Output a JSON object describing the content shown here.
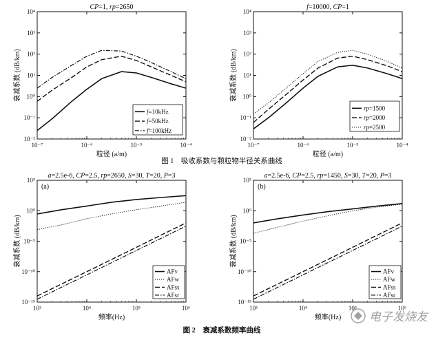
{
  "captions": {
    "fig1": "图 1　吸收系数与颗粒物半径关系曲线",
    "fig2": "图 2　衰减系数频率曲线",
    "watermark": "电子发烧友"
  },
  "chart_data": [
    {
      "type": "line",
      "title": "CP=1, rp=2650",
      "xlabel": "粒径 (a/m)",
      "ylabel": "衰减系数 (dB/km)",
      "xscale": "log",
      "yscale": "log",
      "xlim": [
        1e-07,
        0.0001
      ],
      "ylim": [
        0.01,
        10000
      ],
      "xticks": [
        "10⁻⁷",
        "10⁻⁶",
        "10⁻⁵",
        "10⁻⁴"
      ],
      "yticks": [
        "10⁻²",
        "10⁻¹",
        "10⁰",
        "10¹",
        "10²",
        "10³",
        "10⁴"
      ],
      "x": [
        1e-07,
        2e-07,
        5e-07,
        1e-06,
        2e-06,
        5e-06,
        1e-05,
        2e-05,
        5e-05,
        0.0001
      ],
      "series": [
        {
          "name": "f=10kHz",
          "style": "solid",
          "values": [
            0.025,
            0.09,
            0.6,
            2.2,
            7,
            15,
            13,
            8,
            4,
            2.5
          ]
        },
        {
          "name": "f=50kHz",
          "style": "dashed",
          "values": [
            0.6,
            2,
            8,
            25,
            55,
            80,
            50,
            25,
            10,
            5
          ]
        },
        {
          "name": "f=100kHz",
          "style": "dashdot",
          "values": [
            2.5,
            8,
            30,
            80,
            150,
            140,
            80,
            40,
            15,
            7
          ]
        }
      ],
      "legend": "lower-right"
    },
    {
      "type": "line",
      "title": "f=10000, CP=1",
      "xlabel": "粒径 (a/m)",
      "ylabel": "衰减系数 (dB/km)",
      "xscale": "log",
      "yscale": "log",
      "xlim": [
        1e-07,
        0.0001
      ],
      "ylim": [
        0.01,
        10000
      ],
      "xticks": [
        "10⁻⁷",
        "10⁻⁶",
        "10⁻⁵",
        "10⁻⁴"
      ],
      "yticks": [
        "10⁻²",
        "10⁻¹",
        "10⁰",
        "10¹",
        "10²",
        "10³",
        "10⁴"
      ],
      "x": [
        1e-07,
        2e-07,
        5e-07,
        1e-06,
        2e-06,
        5e-06,
        1e-05,
        2e-05,
        5e-05,
        0.0001
      ],
      "series": [
        {
          "name": "rp=1500",
          "style": "solid",
          "values": [
            0.03,
            0.1,
            0.6,
            2.5,
            9,
            25,
            30,
            22,
            12,
            7
          ]
        },
        {
          "name": "rp=2000",
          "style": "dashed",
          "values": [
            0.06,
            0.25,
            1.5,
            6,
            22,
            65,
            80,
            55,
            28,
            15
          ]
        },
        {
          "name": "rp=2500",
          "style": "dotted",
          "values": [
            0.15,
            0.5,
            3,
            12,
            45,
            120,
            150,
            100,
            45,
            22
          ]
        }
      ],
      "legend": "lower-right"
    },
    {
      "type": "line",
      "panel": "(a)",
      "title": "a=2.5e-6, CP=2.5, rp=2650, S=30, T=20, P=3",
      "xlabel": "频率(Hz)",
      "ylabel": "衰减系数 (dB/km)",
      "xscale": "log",
      "yscale": "log",
      "xlim": [
        1000,
        1000000
      ],
      "ylim": [
        1e-15,
        100000.0
      ],
      "xticks": [
        "10³",
        "10⁴",
        "10⁵",
        "10⁶"
      ],
      "yticks": [
        "10⁻¹⁵",
        "10⁻¹⁰",
        "10⁻⁵",
        "10⁰",
        "10⁵"
      ],
      "x": [
        1000,
        3162,
        10000,
        31623,
        100000,
        316228,
        1000000
      ],
      "series": [
        {
          "name": "AFv",
          "style": "solid",
          "values": [
            0.3,
            1.5,
            6,
            25,
            70,
            150,
            300
          ]
        },
        {
          "name": "AFw",
          "style": "dotted",
          "values": [
            0.0008,
            0.005,
            0.05,
            0.3,
            1.5,
            6,
            25
          ]
        },
        {
          "name": "AFss",
          "style": "dashed",
          "values": [
            1e-14,
            1e-12,
            1e-10,
            1e-08,
            1e-06,
            0.0001,
            0.01
          ]
        },
        {
          "name": "AFsr",
          "style": "dashdot",
          "values": [
            3e-15,
            3e-13,
            3e-11,
            3e-09,
            3e-07,
            3e-05,
            0.003
          ]
        }
      ],
      "legend": "lower-right"
    },
    {
      "type": "line",
      "panel": "(b)",
      "title": "a=2.5e-6, CP=2.5, rp=1450, S=30, T=20, P=3",
      "xlabel": "频率(Hz)",
      "ylabel": "衰减系数 (dB/km)",
      "xscale": "log",
      "yscale": "log",
      "xlim": [
        1000,
        1000000
      ],
      "ylim": [
        1e-15,
        100000.0
      ],
      "xticks": [
        "10³",
        "10⁴",
        "10⁵",
        "10⁶"
      ],
      "yticks": [
        "10⁻¹⁵",
        "10⁻¹⁰",
        "10⁻⁵",
        "10⁰",
        "10⁵"
      ],
      "x": [
        1000,
        3162,
        10000,
        31623,
        100000,
        316228,
        1000000
      ],
      "series": [
        {
          "name": "AFv",
          "style": "solid",
          "values": [
            0.01,
            0.05,
            0.2,
            0.7,
            2,
            6,
            15
          ]
        },
        {
          "name": "AFw",
          "style": "dotted",
          "values": [
            0.0002,
            0.002,
            0.02,
            0.15,
            1,
            4,
            12
          ]
        },
        {
          "name": "AFss",
          "style": "dashed",
          "values": [
            1e-14,
            1e-12,
            1e-10,
            1e-08,
            1e-06,
            0.0001,
            0.01
          ]
        },
        {
          "name": "AFsr",
          "style": "dashdot",
          "values": [
            3e-15,
            3e-13,
            3e-11,
            3e-09,
            3e-07,
            3e-05,
            0.003
          ]
        }
      ],
      "legend": "lower-right"
    }
  ]
}
